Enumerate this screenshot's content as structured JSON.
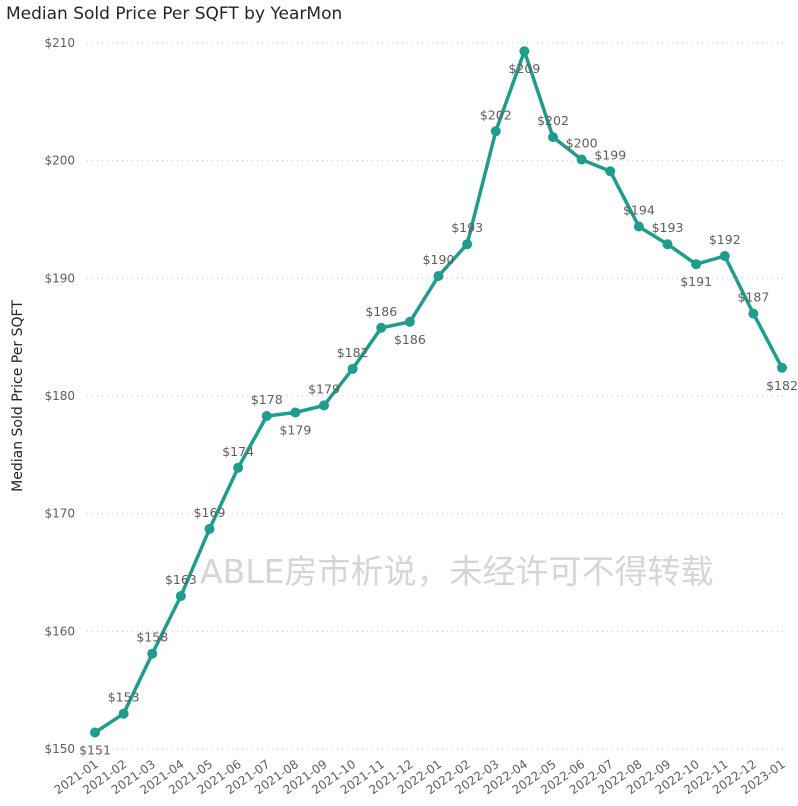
{
  "chart_data": {
    "type": "line",
    "title": "Median Sold Price Per SQFT by YearMon",
    "xlabel": "",
    "ylabel": "Median Sold Price Per SQFT",
    "ylim": [
      150,
      210
    ],
    "yticks": [
      "$150",
      "$160",
      "$170",
      "$180",
      "$190",
      "$200",
      "$210"
    ],
    "grid": true,
    "legend": "none",
    "line_color": "#1e9c8c",
    "categories": [
      "2021-01",
      "2021-02",
      "2021-03",
      "2021-04",
      "2021-05",
      "2021-06",
      "2021-07",
      "2021-08",
      "2021-09",
      "2021-10",
      "2021-11",
      "2021-12",
      "2022-01",
      "2022-02",
      "2022-03",
      "2022-04",
      "2022-05",
      "2022-06",
      "2022-07",
      "2022-08",
      "2022-09",
      "2022-10",
      "2022-11",
      "2022-12",
      "2023-01"
    ],
    "series": [
      {
        "values": [
          151.4,
          153.0,
          158.1,
          163.0,
          168.7,
          173.9,
          178.3,
          178.6,
          179.2,
          182.3,
          185.8,
          186.3,
          190.2,
          192.9,
          202.5,
          209.3,
          202.0,
          200.1,
          199.1,
          194.4,
          192.9,
          191.2,
          191.9,
          187.0,
          182.4
        ],
        "labels": [
          "$151",
          "$153",
          "$158",
          "$163",
          "$169",
          "$174",
          "$178",
          "$179",
          "$179",
          "$182",
          "$186",
          "$186",
          "$190",
          "$193",
          "$202",
          "$209",
          "$202",
          "$200",
          "$199",
          "$194",
          "$193",
          "$191",
          "$192",
          "$187",
          "$182"
        ]
      }
    ],
    "watermark": "ABLE房市析说，未经许可不得转载"
  }
}
